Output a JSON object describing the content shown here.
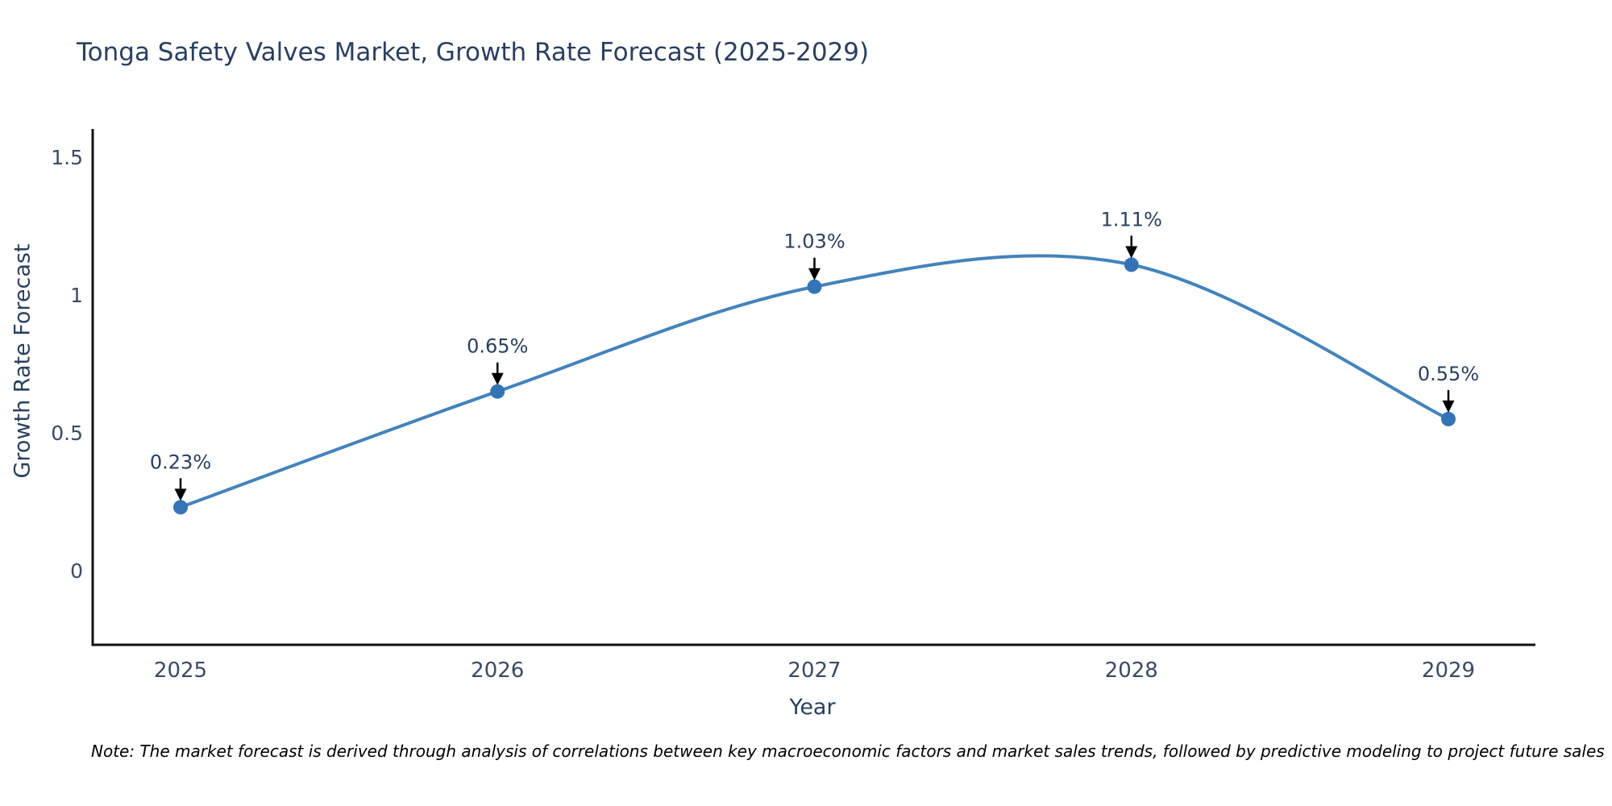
{
  "title": {
    "text": "Tonga Safety Valves Market, Growth Rate Forecast (2025-2029)",
    "color": "#2a3f5f"
  },
  "note": {
    "text": "Note: The market forecast is derived through analysis of correlations between key macroeconomic factors and market sales trends, followed by predictive modeling to project future sales"
  },
  "chart_data": {
    "type": "line",
    "title": "Tonga Safety Valves Market, Growth Rate Forecast (2025-2029)",
    "xlabel": "Year",
    "ylabel": "Growth Rate Forecast",
    "categories": [
      "2025",
      "2026",
      "2027",
      "2028",
      "2029"
    ],
    "series": [
      {
        "name": "Growth Rate Forecast",
        "values": [
          0.23,
          0.65,
          1.03,
          1.11,
          0.55
        ]
      }
    ],
    "data_labels": [
      "0.23%",
      "0.65%",
      "1.03%",
      "1.11%",
      "0.55%"
    ],
    "y_ticks": [
      {
        "value": 0,
        "label": "0"
      },
      {
        "value": 0.5,
        "label": "0.5"
      },
      {
        "value": 1,
        "label": "1"
      },
      {
        "value": 1.5,
        "label": "1.5"
      }
    ],
    "ylim": [
      -0.27,
      1.6
    ],
    "grid": false,
    "legend": "none",
    "line_shape": "spline",
    "marker_style": "circle",
    "annotation_arrows": true,
    "colors": {
      "line": "#4483bb",
      "marker": "#3474b5",
      "arrow": "#000000",
      "axis_line": "#111111",
      "tick_label": "#3b4a63",
      "axis_title": "#2a3f5f",
      "annotation": "#2a3f5f",
      "note": "#000000"
    }
  }
}
